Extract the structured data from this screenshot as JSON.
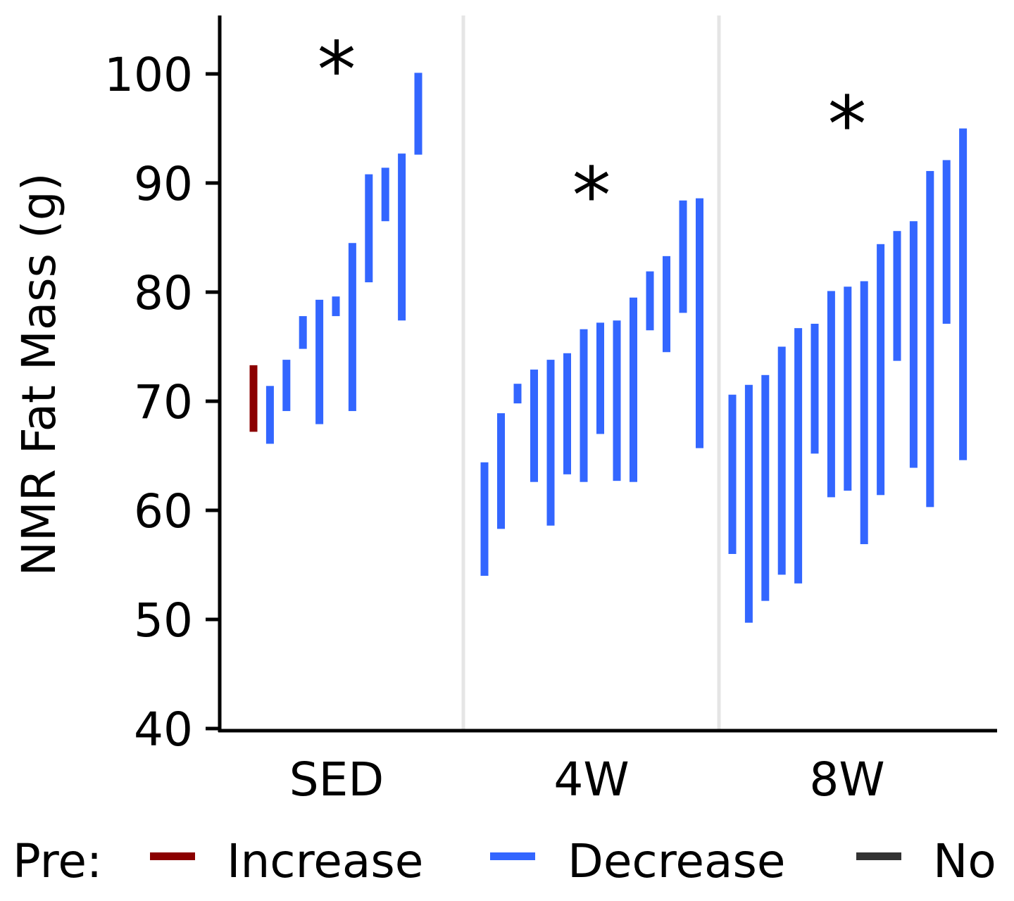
{
  "chart_data": {
    "type": "range-bar",
    "title": "",
    "ylabel": "NMR Fat Mass (g)",
    "xlabel": "",
    "ylim": [
      40,
      105
    ],
    "yticks": [
      40,
      50,
      60,
      70,
      80,
      90,
      100
    ],
    "grid": false,
    "group_separators": true,
    "categories": [
      "SED",
      "4W",
      "8W"
    ],
    "significance": [
      {
        "group": "SED",
        "label": "*",
        "y": 101
      },
      {
        "group": "4W",
        "label": "*",
        "y": 89.5
      },
      {
        "group": "8W",
        "label": "*",
        "y": 96
      }
    ],
    "legend": {
      "title": "Pre:",
      "position": "bottom",
      "entries": [
        {
          "name": "Increase",
          "color": "#8b0000"
        },
        {
          "name": "Decrease",
          "color": "#3366ff"
        },
        {
          "name": "No",
          "color": "#333333"
        }
      ]
    },
    "series": [
      {
        "group": "SED",
        "bars": [
          {
            "low": 67.2,
            "high": 73.3,
            "direction": "Increase"
          },
          {
            "low": 66.1,
            "high": 71.4,
            "direction": "Decrease"
          },
          {
            "low": 69.1,
            "high": 73.8,
            "direction": "Decrease"
          },
          {
            "low": 74.8,
            "high": 77.8,
            "direction": "Decrease"
          },
          {
            "low": 67.9,
            "high": 79.3,
            "direction": "Decrease"
          },
          {
            "low": 77.8,
            "high": 79.6,
            "direction": "Decrease"
          },
          {
            "low": 69.1,
            "high": 84.5,
            "direction": "Decrease"
          },
          {
            "low": 80.9,
            "high": 90.8,
            "direction": "Decrease"
          },
          {
            "low": 86.5,
            "high": 91.4,
            "direction": "Decrease"
          },
          {
            "low": 77.4,
            "high": 92.7,
            "direction": "Decrease"
          },
          {
            "low": 92.6,
            "high": 100.1,
            "direction": "Decrease"
          }
        ]
      },
      {
        "group": "4W",
        "bars": [
          {
            "low": 54.0,
            "high": 64.4,
            "direction": "Decrease"
          },
          {
            "low": 58.3,
            "high": 68.9,
            "direction": "Decrease"
          },
          {
            "low": 69.8,
            "high": 71.6,
            "direction": "Decrease"
          },
          {
            "low": 62.6,
            "high": 72.9,
            "direction": "Decrease"
          },
          {
            "low": 58.6,
            "high": 73.8,
            "direction": "Decrease"
          },
          {
            "low": 63.3,
            "high": 74.4,
            "direction": "Decrease"
          },
          {
            "low": 62.6,
            "high": 76.6,
            "direction": "Decrease"
          },
          {
            "low": 67.0,
            "high": 77.2,
            "direction": "Decrease"
          },
          {
            "low": 62.7,
            "high": 77.4,
            "direction": "Decrease"
          },
          {
            "low": 62.6,
            "high": 79.5,
            "direction": "Decrease"
          },
          {
            "low": 76.5,
            "high": 81.9,
            "direction": "Decrease"
          },
          {
            "low": 74.5,
            "high": 83.3,
            "direction": "Decrease"
          },
          {
            "low": 78.1,
            "high": 88.4,
            "direction": "Decrease"
          },
          {
            "low": 65.7,
            "high": 88.6,
            "direction": "Decrease"
          }
        ]
      },
      {
        "group": "8W",
        "bars": [
          {
            "low": 56.0,
            "high": 70.6,
            "direction": "Decrease"
          },
          {
            "low": 49.7,
            "high": 71.5,
            "direction": "Decrease"
          },
          {
            "low": 51.7,
            "high": 72.4,
            "direction": "Decrease"
          },
          {
            "low": 54.1,
            "high": 75.0,
            "direction": "Decrease"
          },
          {
            "low": 53.3,
            "high": 76.7,
            "direction": "Decrease"
          },
          {
            "low": 65.2,
            "high": 77.1,
            "direction": "Decrease"
          },
          {
            "low": 61.2,
            "high": 80.1,
            "direction": "Decrease"
          },
          {
            "low": 61.8,
            "high": 80.5,
            "direction": "Decrease"
          },
          {
            "low": 56.9,
            "high": 81.0,
            "direction": "Decrease"
          },
          {
            "low": 61.4,
            "high": 84.4,
            "direction": "Decrease"
          },
          {
            "low": 73.7,
            "high": 85.6,
            "direction": "Decrease"
          },
          {
            "low": 63.9,
            "high": 86.5,
            "direction": "Decrease"
          },
          {
            "low": 60.3,
            "high": 91.1,
            "direction": "Decrease"
          },
          {
            "low": 77.1,
            "high": 92.1,
            "direction": "Decrease"
          },
          {
            "low": 64.6,
            "high": 95.0,
            "direction": "Decrease"
          }
        ]
      }
    ]
  }
}
